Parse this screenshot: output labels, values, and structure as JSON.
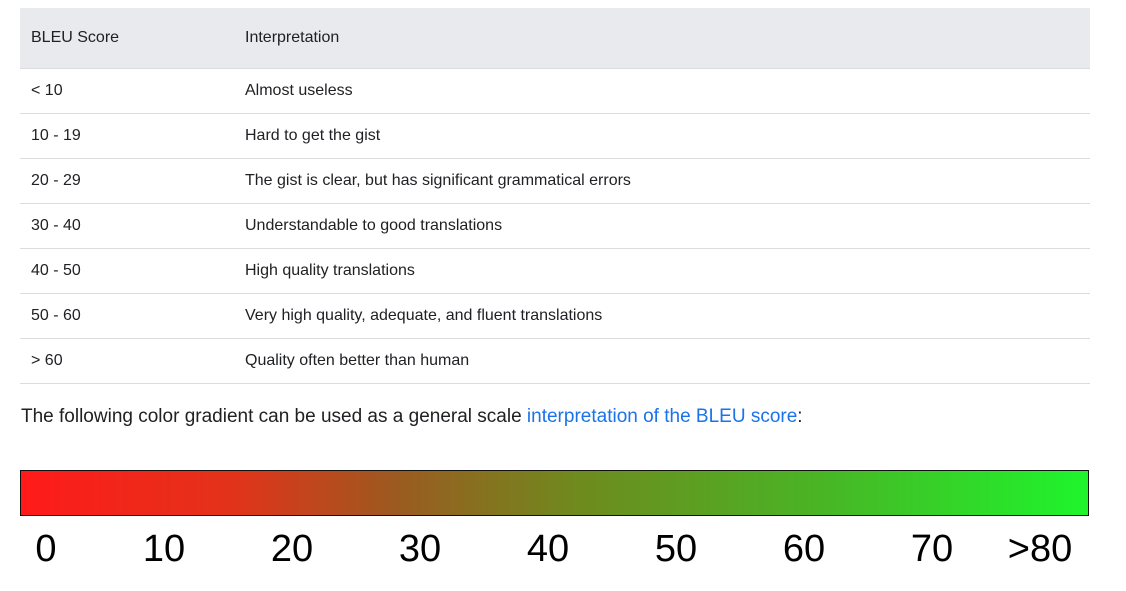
{
  "table": {
    "headers": [
      "BLEU Score",
      "Interpretation"
    ],
    "rows": [
      {
        "score": "< 10",
        "interpretation": "Almost useless"
      },
      {
        "score": "10 - 19",
        "interpretation": "Hard to get the gist"
      },
      {
        "score": "20 - 29",
        "interpretation": "The gist is clear, but has significant grammatical errors"
      },
      {
        "score": "30 - 40",
        "interpretation": "Understandable to good translations"
      },
      {
        "score": "40 - 50",
        "interpretation": "High quality translations"
      },
      {
        "score": "50 - 60",
        "interpretation": "Very high quality, adequate, and fluent translations"
      },
      {
        "score": "> 60",
        "interpretation": "Quality often better than human"
      }
    ]
  },
  "caption": {
    "prefix": "The following color gradient can be used as a general scale ",
    "link_text": "interpretation of the BLEU score",
    "suffix": ":"
  },
  "gradient": {
    "colors": {
      "low": "#ff1a1a",
      "mid": "#9c5a20",
      "high": "#1ef52c"
    },
    "scale_labels": [
      "0",
      "10",
      "20",
      "30",
      "40",
      "50",
      "60",
      "70",
      ">80"
    ]
  }
}
